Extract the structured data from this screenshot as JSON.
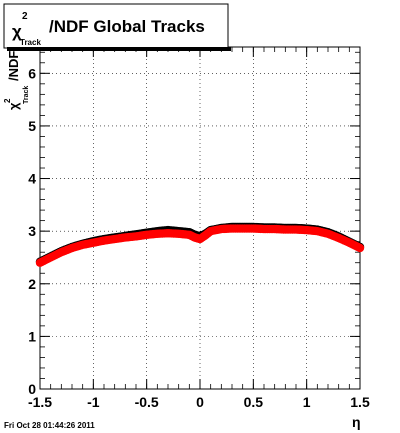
{
  "title": {
    "chi": "χ",
    "sup": "2",
    "sub": "Track",
    "rest": "/NDF  Global Tracks"
  },
  "ylabel": {
    "chi": "χ",
    "sup": "2",
    "sub": "Track",
    "rest": "/NDF"
  },
  "xlabel": "η",
  "footer": "Fri Oct 28 01:44:26 2011",
  "colors": {
    "data_red": "#ff0000",
    "data_black": "#000000",
    "grid": "#000000"
  },
  "chart_data": {
    "type": "scatter",
    "xlim": [
      -1.5,
      1.5
    ],
    "ylim": [
      0,
      6.5
    ],
    "xticks": [
      -1.5,
      -1,
      -0.5,
      0,
      0.5,
      1,
      1.5
    ],
    "xtick_labels": [
      "-1.5",
      "-1",
      "-0.5",
      "0",
      "0.5",
      "1",
      "1.5"
    ],
    "yticks": [
      0,
      1,
      2,
      3,
      4,
      5,
      6
    ],
    "ytick_labels": [
      "0",
      "1",
      "2",
      "3",
      "4",
      "5",
      "6"
    ],
    "grid": true,
    "series": [
      {
        "color": "#000000",
        "x": [
          -1.5,
          -1.4,
          -1.3,
          -1.2,
          -1.1,
          -1.0,
          -0.9,
          -0.8,
          -0.7,
          -0.6,
          -0.5,
          -0.4,
          -0.3,
          -0.2,
          -0.1,
          -0.05,
          0.0,
          0.05,
          0.1,
          0.2,
          0.3,
          0.4,
          0.5,
          0.6,
          0.7,
          0.8,
          0.9,
          1.0,
          1.1,
          1.2,
          1.3,
          1.4,
          1.5
        ],
        "y": [
          2.42,
          2.52,
          2.62,
          2.7,
          2.76,
          2.81,
          2.85,
          2.88,
          2.91,
          2.94,
          2.97,
          3.0,
          3.02,
          3.0,
          2.98,
          2.93,
          2.9,
          2.95,
          3.02,
          3.06,
          3.08,
          3.08,
          3.08,
          3.07,
          3.07,
          3.06,
          3.06,
          3.05,
          3.03,
          2.98,
          2.9,
          2.8,
          2.7
        ]
      },
      {
        "color": "#ff0000",
        "x": [
          -1.5,
          -1.4,
          -1.3,
          -1.2,
          -1.1,
          -1.0,
          -0.9,
          -0.8,
          -0.7,
          -0.6,
          -0.5,
          -0.4,
          -0.3,
          -0.2,
          -0.1,
          -0.05,
          0.0,
          0.05,
          0.1,
          0.2,
          0.3,
          0.4,
          0.5,
          0.6,
          0.7,
          0.8,
          0.9,
          1.0,
          1.1,
          1.2,
          1.3,
          1.4,
          1.5
        ],
        "y": [
          2.4,
          2.5,
          2.6,
          2.68,
          2.74,
          2.78,
          2.82,
          2.85,
          2.88,
          2.9,
          2.93,
          2.95,
          2.96,
          2.95,
          2.93,
          2.88,
          2.85,
          2.92,
          3.0,
          3.04,
          3.05,
          3.05,
          3.05,
          3.04,
          3.04,
          3.03,
          3.03,
          3.02,
          3.0,
          2.95,
          2.87,
          2.78,
          2.68
        ]
      }
    ]
  }
}
